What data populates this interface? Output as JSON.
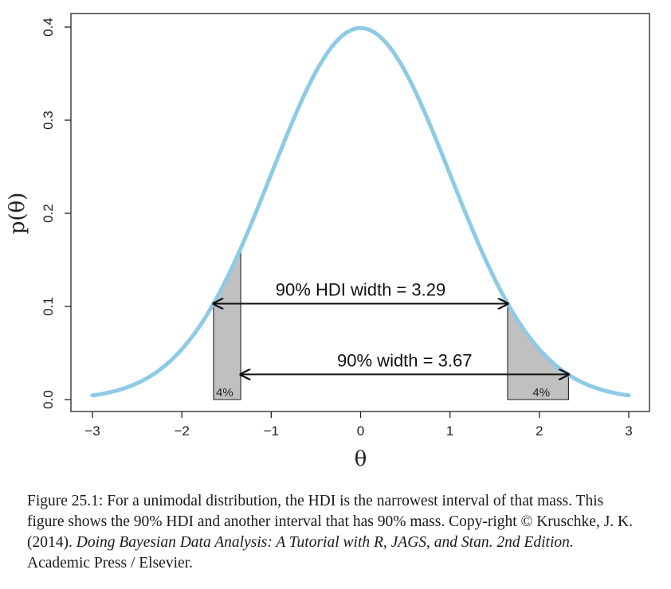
{
  "chart_data": {
    "type": "line",
    "title": "",
    "xlabel": "θ",
    "ylabel": "p(θ)",
    "xlim": [
      -3,
      3
    ],
    "ylim": [
      0,
      0.4
    ],
    "x_ticks": [
      -3,
      -2,
      -1,
      0,
      1,
      2,
      3
    ],
    "y_ticks": [
      0.0,
      0.1,
      0.2,
      0.3,
      0.4
    ],
    "x_tick_labels": [
      "−3",
      "−2",
      "−1",
      "0",
      "1",
      "2",
      "3"
    ],
    "y_tick_labels": [
      "0.0",
      "0.1",
      "0.2",
      "0.3",
      "0.4"
    ],
    "series": [
      {
        "curve": "standard normal density",
        "mean": 0,
        "sd": 1,
        "color": "#8ecae6"
      }
    ],
    "shaded_regions": [
      {
        "from": -1.645,
        "to": -1.341,
        "label": "4%",
        "color": "#c0c0c0"
      },
      {
        "from": 1.645,
        "to": 2.326,
        "label": "4%",
        "color": "#c0c0c0"
      }
    ],
    "annotations": [
      {
        "text": "90% HDI width = 3.29",
        "from": -1.645,
        "to": 1.645,
        "y": 0.103
      },
      {
        "text": "90% width = 3.67",
        "from": -1.341,
        "to": 2.326,
        "y": 0.027
      }
    ]
  },
  "caption": {
    "lead": "Figure 25.1: For a unimodal distribution, the HDI is the narrowest interval of that mass. This figure shows the 90% HDI and another interval that has 90% mass.  Copy-right © Kruschke, J. K. (2014). ",
    "italic": "Doing Bayesian Data Analysis: A Tutorial with R, JAGS, and Stan. 2nd Edition.",
    "tail": " Academic Press / Elsevier."
  }
}
